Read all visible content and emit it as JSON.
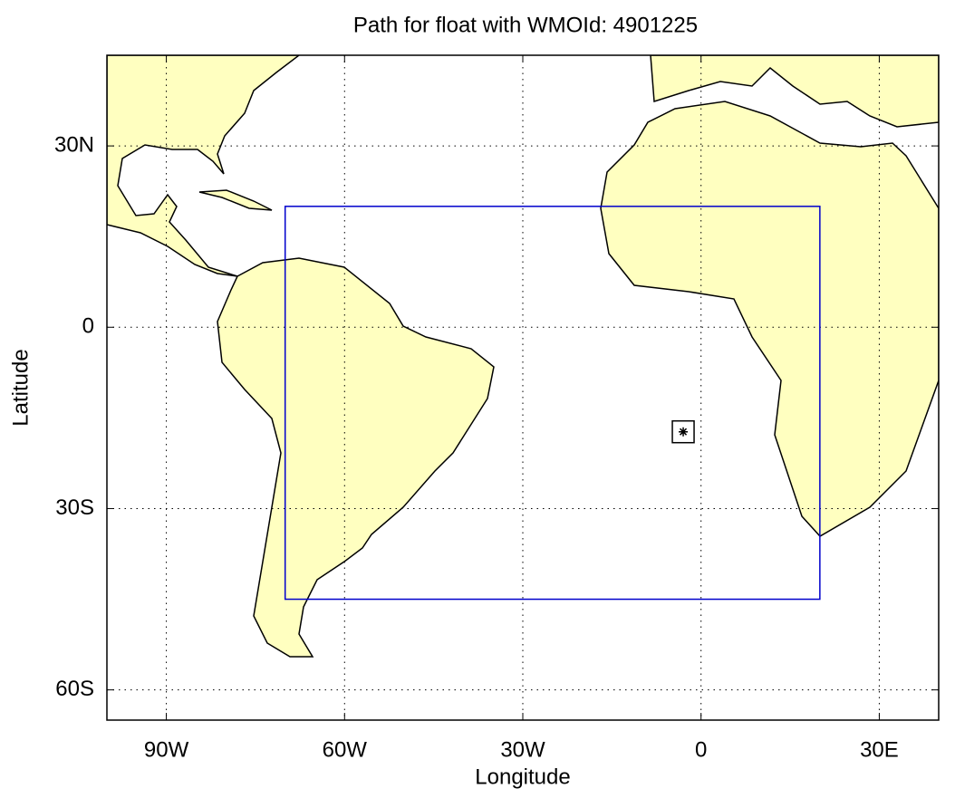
{
  "chart_data": {
    "type": "map",
    "title": "Path for float with WMOId: 4901225",
    "x_label": "Longitude",
    "y_label": "Latitude",
    "xlim": [
      -100,
      40
    ],
    "ylim": [
      -65,
      45
    ],
    "xticks": [
      {
        "value": -90,
        "label": "90W"
      },
      {
        "value": -60,
        "label": "60W"
      },
      {
        "value": -30,
        "label": "30W"
      },
      0,
      {
        "value": 30,
        "label": "30E"
      }
    ],
    "yticks": [
      {
        "value": 30,
        "label": "30N"
      },
      0,
      {
        "value": -30,
        "label": "30S"
      },
      {
        "value": -60,
        "label": "60S"
      }
    ],
    "grid": true,
    "land_color": "#ffffc0",
    "region": {
      "lon": [
        -70,
        20
      ],
      "lat": [
        -45,
        20
      ],
      "color": "#0000cc"
    },
    "float_positions": {
      "lon": [
        -3
      ],
      "lat": [
        -17.3
      ],
      "color": "#000000"
    }
  }
}
